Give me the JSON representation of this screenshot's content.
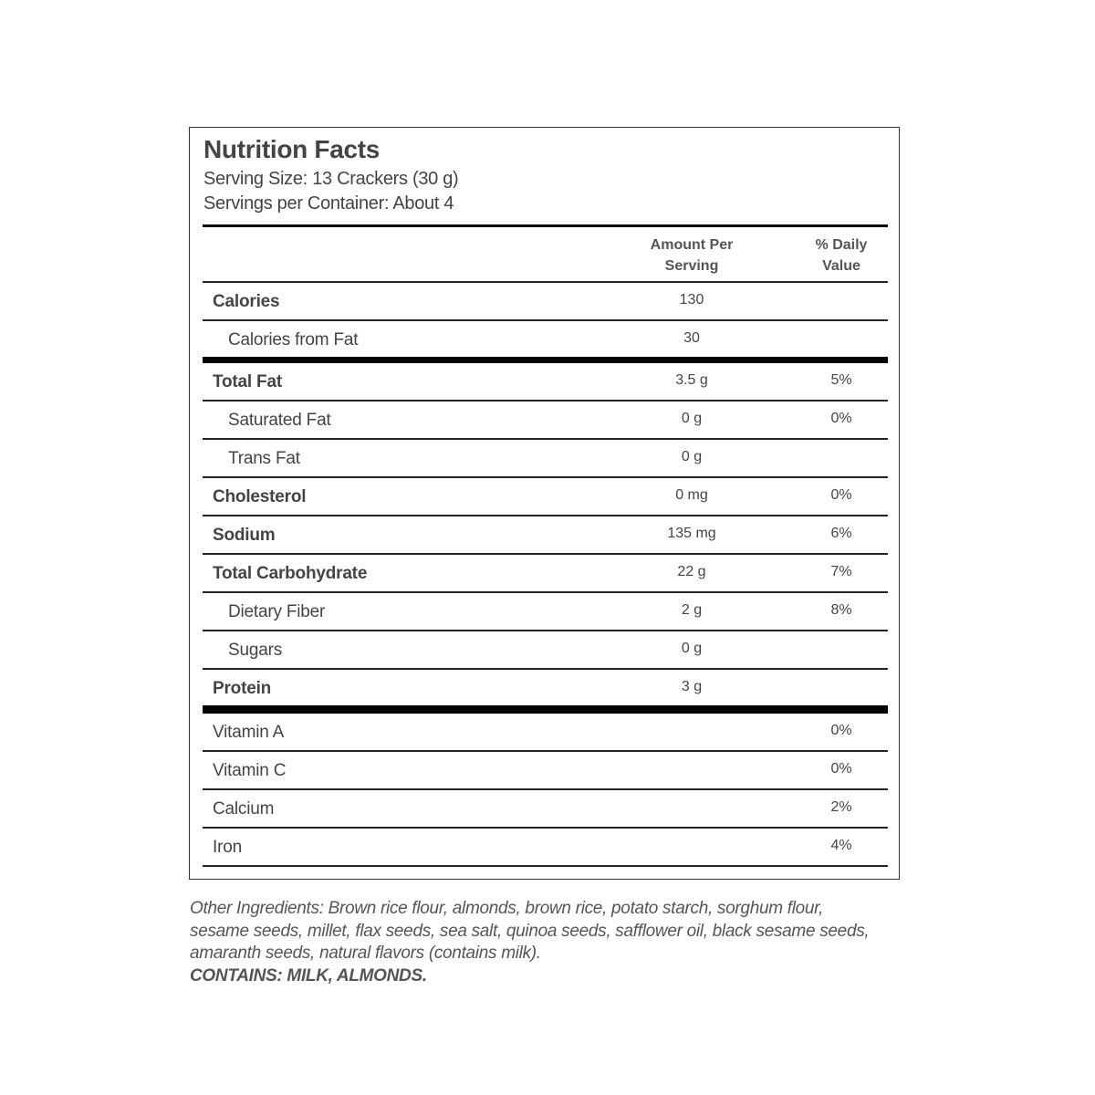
{
  "label": {
    "title": "Nutrition Facts",
    "serving_size": "Serving Size: 13 Crackers (30 g)",
    "servings_per_container": "Servings per Container: About 4",
    "header": {
      "amount_line1": "Amount Per",
      "amount_line2": "Serving",
      "dv_line1": "% Daily",
      "dv_line2": "Value"
    },
    "rows": [
      {
        "name": "Calories",
        "amount": "130",
        "dv": "",
        "bold": true,
        "indent": false
      },
      {
        "name": "Calories from Fat",
        "amount": "30",
        "dv": "",
        "bold": false,
        "indent": true,
        "sep": "thick"
      },
      {
        "name": "Total Fat",
        "amount": "3.5 g",
        "dv": "5%",
        "bold": true,
        "indent": false
      },
      {
        "name": "Saturated Fat",
        "amount": "0 g",
        "dv": "0%",
        "bold": false,
        "indent": true
      },
      {
        "name": "Trans Fat",
        "amount": "0 g",
        "dv": "",
        "bold": false,
        "indent": true
      },
      {
        "name": "Cholesterol",
        "amount": "0 mg",
        "dv": "0%",
        "bold": true,
        "indent": false
      },
      {
        "name": "Sodium",
        "amount": "135 mg",
        "dv": "6%",
        "bold": true,
        "indent": false
      },
      {
        "name": "Total Carbohydrate",
        "amount": "22 g",
        "dv": "7%",
        "bold": true,
        "indent": false
      },
      {
        "name": "Dietary Fiber",
        "amount": "2 g",
        "dv": "8%",
        "bold": false,
        "indent": true
      },
      {
        "name": "Sugars",
        "amount": "0 g",
        "dv": "",
        "bold": false,
        "indent": true
      },
      {
        "name": "Protein",
        "amount": "3 g",
        "dv": "",
        "bold": true,
        "indent": false,
        "sep": "thicker"
      },
      {
        "name": "Vitamin A",
        "amount": "",
        "dv": "0%",
        "bold": false,
        "indent": false
      },
      {
        "name": "Vitamin C",
        "amount": "",
        "dv": "0%",
        "bold": false,
        "indent": false
      },
      {
        "name": "Calcium",
        "amount": "",
        "dv": "2%",
        "bold": false,
        "indent": false
      },
      {
        "name": "Iron",
        "amount": "",
        "dv": "4%",
        "bold": false,
        "indent": false
      }
    ]
  },
  "ingredients": {
    "text": "Other Ingredients: Brown rice flour, almonds, brown rice, potato starch, sorghum flour, sesame seeds, millet, flax seeds, sea salt, quinoa seeds, safflower oil, black sesame seeds, amaranth seeds, natural flavors (contains milk).",
    "allergens": "CONTAINS: MILK, ALMONDS."
  }
}
